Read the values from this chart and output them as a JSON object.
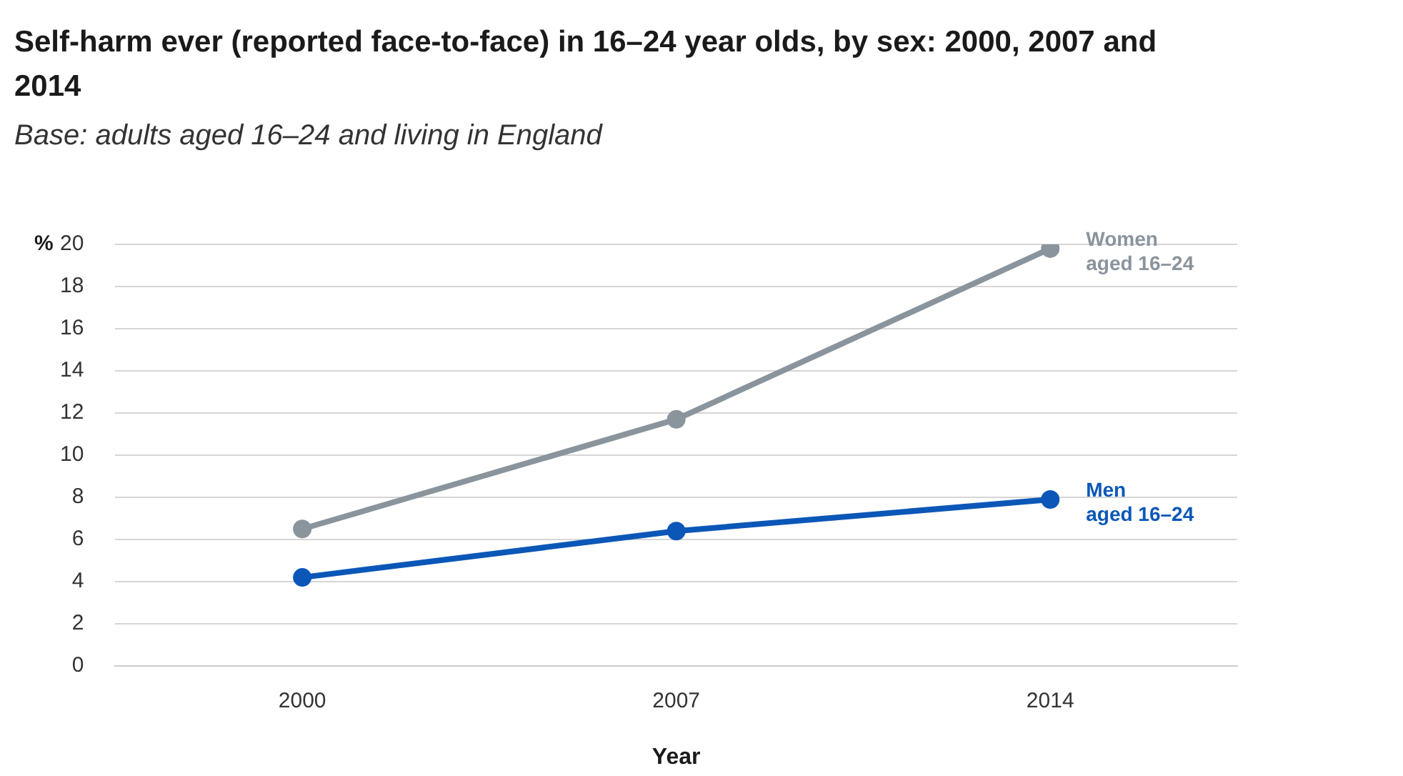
{
  "chart_data": {
    "type": "line",
    "title": "Self-harm ever (reported face-to-face) in 16–24 year olds, by sex: 2000, 2007 and 2014",
    "subtitle": "Base: adults aged 16–24 and living in England",
    "xlabel": "Year",
    "ylabel": "%",
    "categories": [
      "2000",
      "2007",
      "2014"
    ],
    "series": [
      {
        "name": "Women aged 16–24",
        "color": "#8a949c",
        "values": [
          6.5,
          11.7,
          19.8
        ]
      },
      {
        "name": "Men aged 16–24",
        "color": "#0b57b8",
        "values": [
          4.2,
          6.4,
          7.9
        ]
      }
    ],
    "ylim": [
      0,
      20
    ],
    "yticks": [
      0,
      2,
      4,
      6,
      8,
      10,
      12,
      14,
      16,
      18,
      20
    ],
    "grid": "y",
    "marker": "circle",
    "line_style": "solid"
  }
}
